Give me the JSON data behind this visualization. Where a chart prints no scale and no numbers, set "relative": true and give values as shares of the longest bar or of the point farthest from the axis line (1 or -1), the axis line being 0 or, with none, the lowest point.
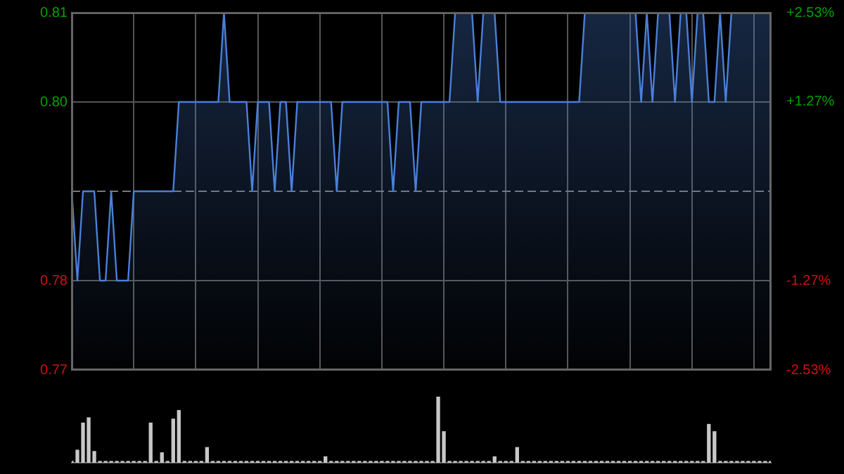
{
  "chart_data": [
    {
      "type": "area",
      "categories": [
        null,
        null,
        null,
        null,
        null,
        null,
        null,
        null,
        null,
        null,
        null,
        null,
        null,
        null,
        null,
        null,
        null,
        null,
        null,
        null,
        null,
        null,
        null,
        null,
        null,
        null,
        null,
        null,
        null,
        null,
        null,
        null,
        null,
        null,
        null,
        null,
        null,
        null,
        null,
        null,
        null,
        null,
        null,
        null,
        null,
        null,
        null,
        null,
        null,
        null,
        null,
        null,
        null,
        null,
        null,
        null,
        null,
        null,
        null,
        null,
        null,
        null,
        null,
        null,
        null,
        null,
        null,
        null,
        null,
        null,
        null,
        null,
        null,
        null,
        null,
        null,
        null,
        null,
        null,
        null,
        null,
        null,
        null,
        null,
        null,
        null,
        null,
        null,
        null,
        null,
        null,
        null,
        null,
        null,
        null,
        null,
        null,
        null,
        null,
        null,
        null,
        null,
        null,
        null,
        null,
        null,
        null,
        null,
        null,
        null,
        null,
        null,
        null,
        null,
        null,
        null,
        null,
        null,
        null,
        null,
        null,
        null,
        null,
        null,
        null
      ],
      "series": [
        {
          "color": "#4a80d8",
          "values": [
            0.79,
            0.78,
            0.79,
            0.79,
            0.79,
            0.78,
            0.78,
            0.79,
            0.78,
            0.78,
            0.78,
            0.79,
            0.79,
            0.79,
            0.79,
            0.79,
            0.79,
            0.79,
            0.79,
            0.8,
            0.8,
            0.8,
            0.8,
            0.8,
            0.8,
            0.8,
            0.8,
            0.81,
            0.8,
            0.8,
            0.8,
            0.8,
            0.79,
            0.8,
            0.8,
            0.8,
            0.79,
            0.8,
            0.8,
            0.79,
            0.8,
            0.8,
            0.8,
            0.8,
            0.8,
            0.8,
            0.8,
            0.79,
            0.8,
            0.8,
            0.8,
            0.8,
            0.8,
            0.8,
            0.8,
            0.8,
            0.8,
            0.79,
            0.8,
            0.8,
            0.8,
            0.79,
            0.8,
            0.8,
            0.8,
            0.8,
            0.8,
            0.8,
            0.81,
            0.81,
            0.81,
            0.81,
            0.8,
            0.81,
            0.81,
            0.81,
            0.8,
            0.8,
            0.8,
            0.8,
            0.8,
            0.8,
            0.8,
            0.8,
            0.8,
            0.8,
            0.8,
            0.8,
            0.8,
            0.8,
            0.8,
            0.81,
            0.81,
            0.81,
            0.81,
            0.81,
            0.81,
            0.81,
            0.81,
            0.81,
            0.81,
            0.8,
            0.81,
            0.8,
            0.81,
            0.81,
            0.81,
            0.8,
            0.81,
            0.81,
            0.8,
            0.81,
            0.81,
            0.8,
            0.8,
            0.81,
            0.8,
            0.81,
            0.81,
            0.81,
            0.81,
            0.81,
            0.81,
            0.81,
            0.81
          ]
        }
      ],
      "ylim": [
        0.77,
        0.81
      ],
      "yticks": [
        0.77,
        0.78,
        {
          "value": 0.8,
          "label": "0.80"
        },
        0.81
      ],
      "y2lim": [
        -2.53,
        2.53
      ],
      "y2ticks": [
        {
          "value": -2.53,
          "label": "-2.53%"
        },
        {
          "value": -1.27,
          "label": "-1.27%"
        },
        {
          "value": 1.27,
          "label": "+1.27%"
        },
        {
          "value": 2.53,
          "label": "+2.53%"
        }
      ],
      "ref_lines": [
        {
          "axis": "y",
          "value": 0.79,
          "line_style": "dashed"
        }
      ],
      "grid": true
    },
    {
      "type": "bar",
      "relative": true,
      "color": "#c8c8c8",
      "categories": [
        null,
        null,
        null,
        null,
        null,
        null,
        null,
        null,
        null,
        null,
        null,
        null,
        null,
        null,
        null,
        null,
        null,
        null,
        null,
        null,
        null,
        null,
        null,
        null,
        null,
        null,
        null,
        null,
        null,
        null,
        null,
        null,
        null,
        null,
        null,
        null,
        null,
        null,
        null,
        null,
        null,
        null,
        null,
        null,
        null,
        null,
        null,
        null,
        null,
        null,
        null,
        null,
        null,
        null,
        null,
        null,
        null,
        null,
        null,
        null,
        null,
        null,
        null,
        null,
        null,
        null,
        null,
        null,
        null,
        null,
        null,
        null,
        null,
        null,
        null,
        null,
        null,
        null,
        null,
        null,
        null,
        null,
        null,
        null,
        null,
        null,
        null,
        null,
        null,
        null,
        null,
        null,
        null,
        null,
        null,
        null,
        null,
        null,
        null,
        null,
        null,
        null,
        null,
        null,
        null,
        null,
        null,
        null,
        null,
        null,
        null,
        null,
        null,
        null,
        null,
        null,
        null,
        null,
        null,
        null,
        null,
        null,
        null,
        null,
        null
      ],
      "values": [
        0.02,
        0.19,
        0.6,
        0.68,
        0.17,
        0.02,
        0.02,
        0.02,
        0.02,
        0.02,
        0.02,
        0.02,
        0.02,
        0.02,
        0.6,
        0.02,
        0.15,
        0.02,
        0.66,
        0.79,
        0.02,
        0.02,
        0.02,
        0.02,
        0.23,
        0.02,
        0.02,
        0.02,
        0.02,
        0.02,
        0.02,
        0.02,
        0.02,
        0.02,
        0.02,
        0.02,
        0.02,
        0.02,
        0.02,
        0.02,
        0.02,
        0.02,
        0.02,
        0.02,
        0.02,
        0.09,
        0.02,
        0.02,
        0.02,
        0.02,
        0.02,
        0.02,
        0.02,
        0.02,
        0.02,
        0.02,
        0.02,
        0.02,
        0.02,
        0.02,
        0.02,
        0.02,
        0.02,
        0.02,
        0.02,
        1,
        0.47,
        0.02,
        0.02,
        0.02,
        0.02,
        0.02,
        0.02,
        0.02,
        0.02,
        0.09,
        0.02,
        0.02,
        0.02,
        0.23,
        0.02,
        0.02,
        0.02,
        0.02,
        0.02,
        0.02,
        0.02,
        0.02,
        0.02,
        0.02,
        0.02,
        0.02,
        0.02,
        0.02,
        0.02,
        0.02,
        0.02,
        0.02,
        0.02,
        0.02,
        0.02,
        0.02,
        0.02,
        0.02,
        0.02,
        0.02,
        0.02,
        0.02,
        0.02,
        0.02,
        0.02,
        0.02,
        0.02,
        0.58,
        0.47,
        0.02,
        0.02,
        0.02,
        0.02,
        0.02,
        0.02,
        0.02,
        0.02,
        0.02,
        0.02
      ]
    }
  ]
}
